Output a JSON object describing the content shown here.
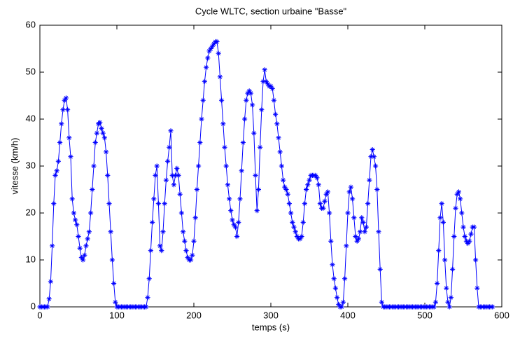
{
  "chart_data": {
    "type": "line",
    "title": "Cycle WLTC, section urbaine \"Basse\"",
    "x_label": "temps (s)",
    "y_label": "vitesse (km/h)",
    "xlim": [
      0,
      600
    ],
    "ylim": [
      0,
      60
    ],
    "xticks": [
      0,
      100,
      200,
      300,
      400,
      500,
      600
    ],
    "yticks": [
      0,
      10,
      20,
      30,
      40,
      50,
      60
    ],
    "grid": false,
    "x": [
      0,
      2,
      4,
      6,
      8,
      10,
      12,
      14,
      16,
      18,
      20,
      22,
      24,
      26,
      28,
      30,
      32,
      34,
      36,
      38,
      40,
      42,
      44,
      46,
      48,
      50,
      52,
      54,
      56,
      58,
      60,
      62,
      64,
      66,
      68,
      70,
      72,
      74,
      76,
      78,
      80,
      82,
      84,
      86,
      88,
      90,
      92,
      94,
      96,
      98,
      100,
      102,
      104,
      106,
      108,
      110,
      112,
      114,
      116,
      118,
      120,
      122,
      124,
      126,
      128,
      130,
      132,
      134,
      136,
      138,
      140,
      142,
      144,
      146,
      148,
      150,
      152,
      154,
      156,
      158,
      160,
      162,
      164,
      166,
      168,
      170,
      172,
      174,
      176,
      178,
      180,
      182,
      184,
      186,
      188,
      190,
      192,
      194,
      196,
      198,
      200,
      202,
      204,
      206,
      208,
      210,
      212,
      214,
      216,
      218,
      220,
      222,
      224,
      226,
      228,
      230,
      232,
      234,
      236,
      238,
      240,
      242,
      244,
      246,
      248,
      250,
      252,
      254,
      256,
      258,
      260,
      262,
      264,
      266,
      268,
      270,
      272,
      274,
      276,
      278,
      280,
      282,
      284,
      286,
      288,
      290,
      292,
      294,
      296,
      298,
      300,
      302,
      304,
      306,
      308,
      310,
      312,
      314,
      316,
      318,
      320,
      322,
      324,
      326,
      328,
      330,
      332,
      334,
      336,
      338,
      340,
      342,
      344,
      346,
      348,
      350,
      352,
      354,
      356,
      358,
      360,
      362,
      364,
      366,
      368,
      370,
      372,
      374,
      376,
      378,
      380,
      382,
      384,
      386,
      388,
      390,
      392,
      394,
      396,
      398,
      400,
      402,
      404,
      406,
      408,
      410,
      412,
      414,
      416,
      418,
      420,
      422,
      424,
      426,
      428,
      430,
      432,
      434,
      436,
      438,
      440,
      442,
      444,
      446,
      448,
      450,
      452,
      454,
      456,
      458,
      460,
      462,
      464,
      466,
      468,
      470,
      472,
      474,
      476,
      478,
      480,
      482,
      484,
      486,
      488,
      490,
      492,
      494,
      496,
      498,
      500,
      502,
      504,
      506,
      508,
      510,
      512,
      514,
      516,
      518,
      520,
      522,
      524,
      526,
      528,
      530,
      532,
      534,
      536,
      538,
      540,
      542,
      544,
      546,
      548,
      550,
      552,
      554,
      556,
      558,
      560,
      562,
      564,
      566,
      568,
      570,
      572,
      574,
      576,
      578,
      580,
      582,
      584,
      586,
      588
    ],
    "series": [
      {
        "name": "vitesse",
        "color": "#0000ff",
        "values": [
          0,
          0,
          0,
          0,
          0,
          0,
          1.7,
          5.4,
          13,
          22,
          28,
          29,
          31,
          35,
          39,
          42,
          44,
          44.5,
          42,
          36,
          32,
          23,
          20,
          18.5,
          17.5,
          15,
          12.5,
          10.5,
          10,
          11,
          13,
          14.5,
          16,
          20,
          25,
          30,
          35,
          37,
          39,
          39.3,
          38,
          37,
          36,
          33,
          28,
          22,
          16,
          10,
          5,
          1,
          0,
          0,
          0,
          0,
          0,
          0,
          0,
          0,
          0,
          0,
          0,
          0,
          0,
          0,
          0,
          0,
          0,
          0,
          0,
          0,
          2,
          6,
          12,
          18,
          23,
          28,
          30,
          22,
          13,
          12,
          16,
          22,
          27,
          31,
          34,
          37.5,
          28,
          26,
          28,
          29.5,
          28,
          24,
          20,
          16,
          14,
          12,
          10.5,
          10,
          10,
          11,
          14,
          19,
          25,
          30,
          35,
          40,
          44,
          48,
          51,
          53,
          54.5,
          55,
          55.5,
          56,
          56.5,
          56.5,
          54,
          49,
          44,
          39,
          34,
          30,
          26,
          23,
          20.5,
          18.5,
          17.5,
          17,
          15,
          18,
          23,
          29,
          35,
          40,
          44,
          45.5,
          46,
          45.5,
          43,
          37,
          28,
          20.5,
          25,
          34,
          42,
          48,
          50.5,
          48,
          47.5,
          47,
          47,
          46.5,
          44,
          41,
          39,
          36,
          33,
          30,
          27,
          25.5,
          25,
          24,
          22,
          20,
          18,
          17,
          16,
          15,
          14.5,
          14.5,
          15,
          18,
          22,
          25,
          26,
          27,
          28,
          28,
          28,
          28,
          27.5,
          26,
          22,
          21,
          21,
          22.5,
          24,
          24.5,
          20,
          14,
          9,
          6,
          4,
          2,
          0.5,
          0,
          0,
          1,
          6,
          13,
          20,
          24.5,
          25.5,
          23,
          19,
          15,
          14,
          14.5,
          16,
          19,
          18,
          16,
          17,
          22,
          27,
          32,
          33.5,
          32,
          30,
          25,
          16,
          8,
          1,
          0,
          0,
          0,
          0,
          0,
          0,
          0,
          0,
          0,
          0,
          0,
          0,
          0,
          0,
          0,
          0,
          0,
          0,
          0,
          0,
          0,
          0,
          0,
          0,
          0,
          0,
          0,
          0,
          0,
          0,
          0,
          0,
          0,
          0,
          1,
          5,
          12,
          19,
          22,
          18,
          10,
          4,
          1,
          0,
          2,
          8,
          15,
          21,
          24,
          24.5,
          23,
          20,
          17,
          15,
          14,
          13.5,
          14,
          15.5,
          17,
          17,
          10,
          4,
          0,
          0,
          0,
          0,
          0,
          0,
          0,
          0,
          0,
          0
        ]
      }
    ]
  }
}
